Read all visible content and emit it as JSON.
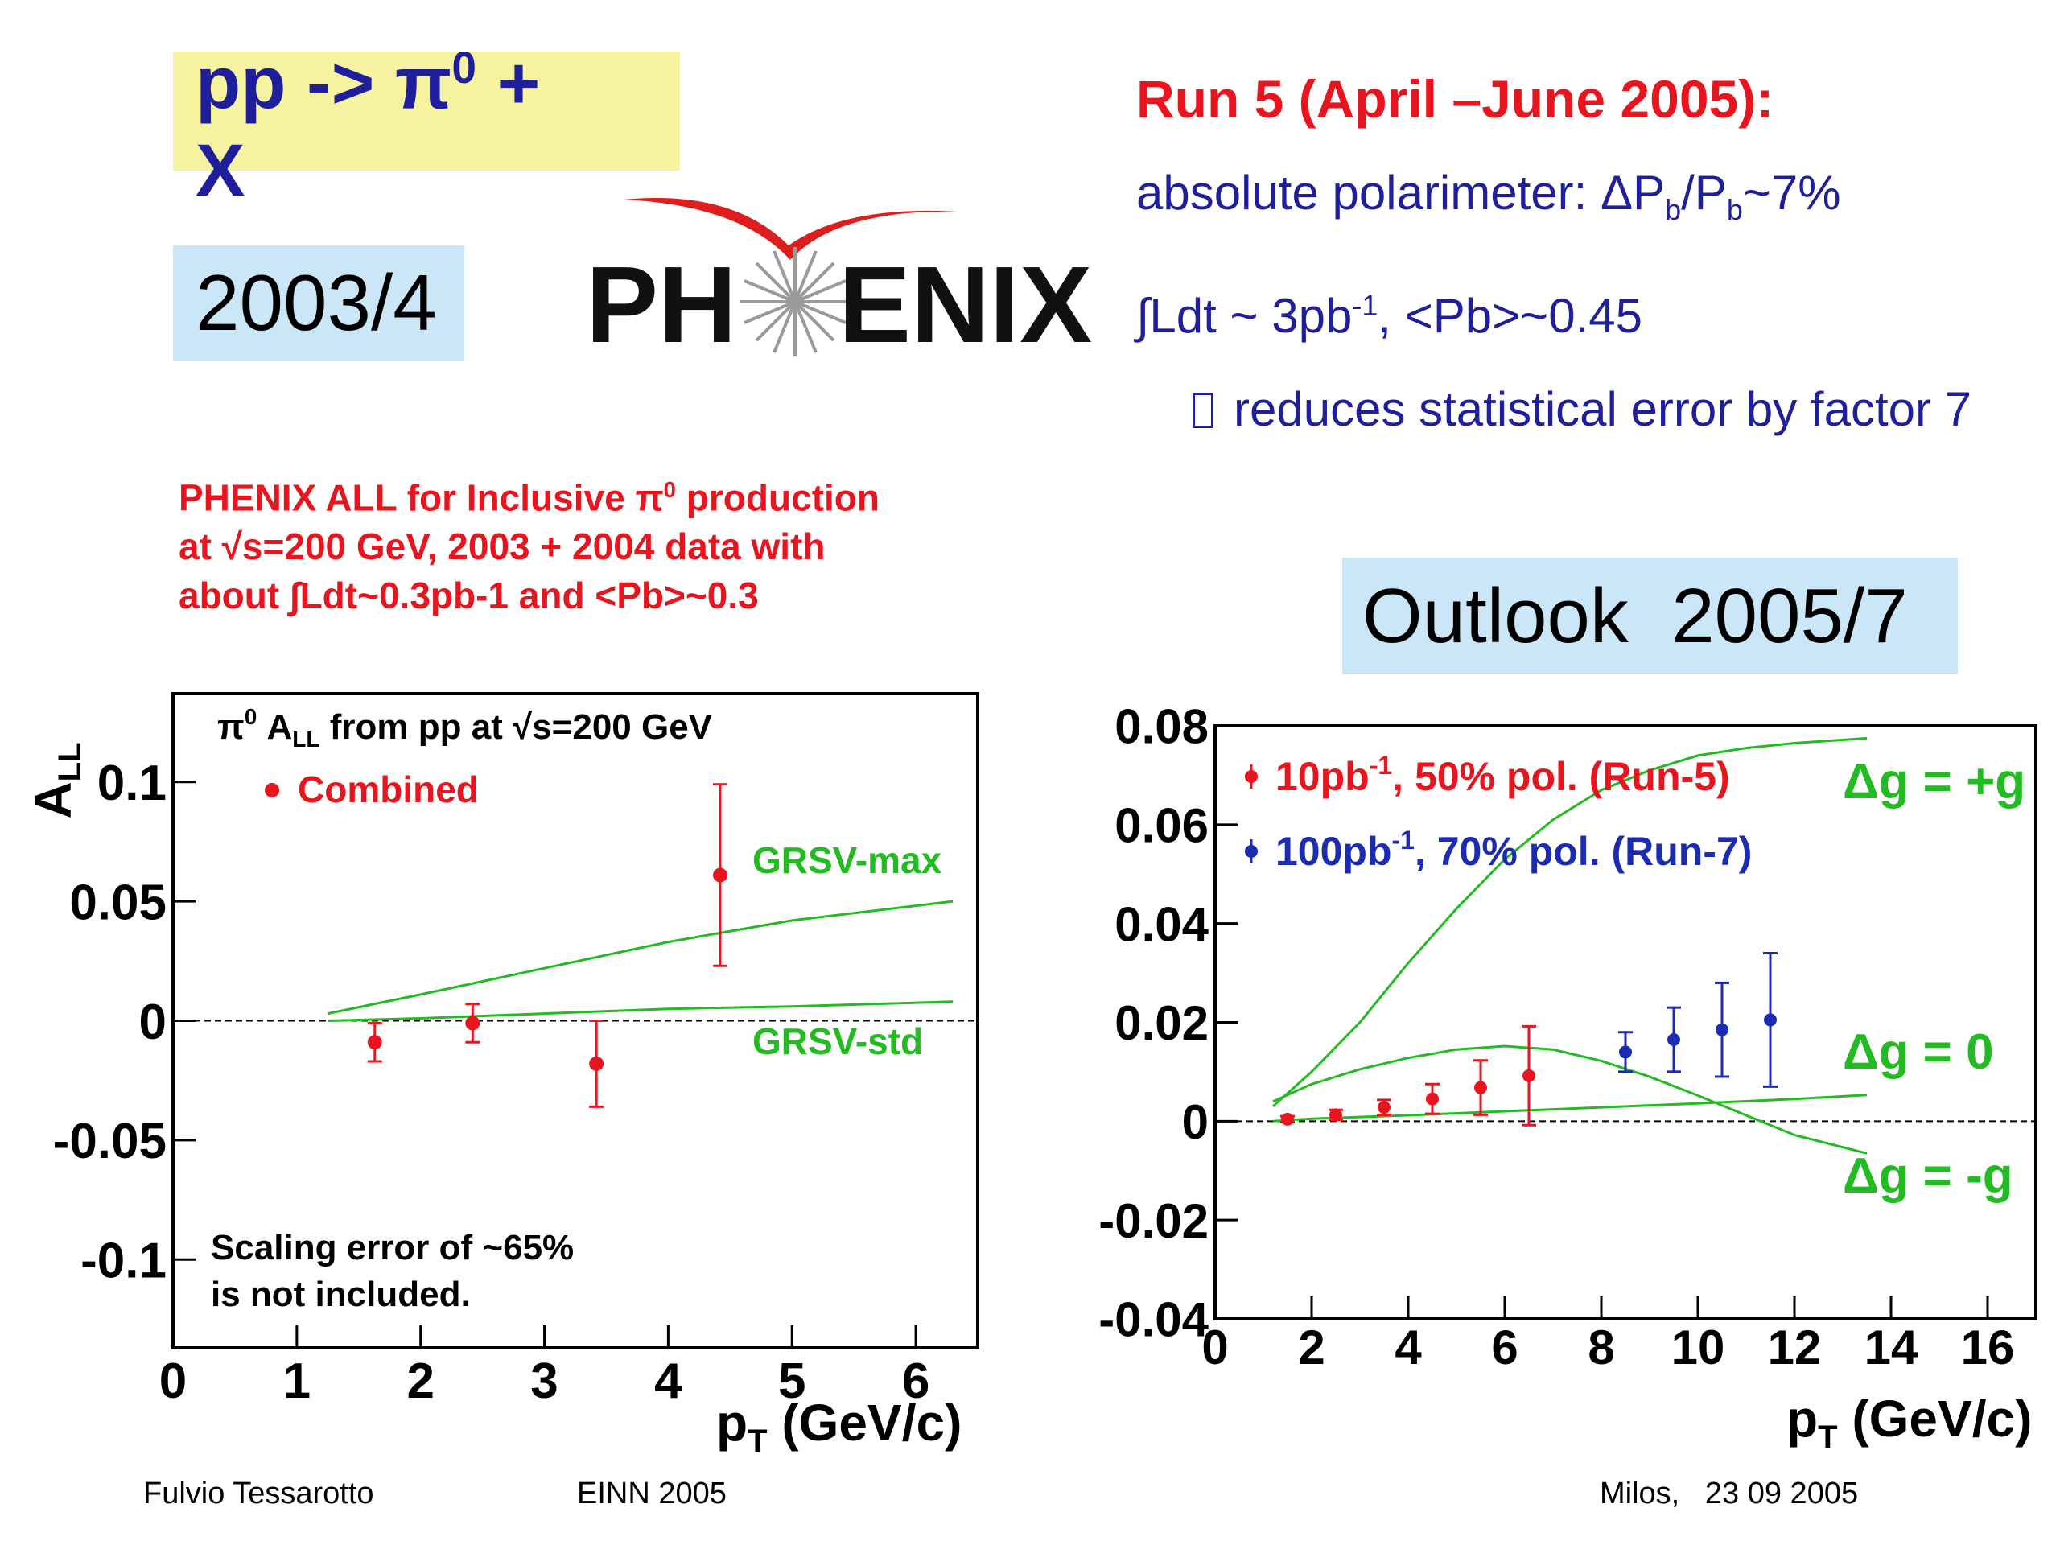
{
  "header": {
    "title_line1": "pp -> ",
    "title_symbol": "π",
    "title_sup": "0",
    "title_plus": " +",
    "title_line2": "X",
    "year_box": "2003/4",
    "logo_left": "PH",
    "logo_right": "ENIX"
  },
  "run5": {
    "heading": "Run 5 (April –June 2005):",
    "line1_prefix": "absolute polarimeter: ΔP",
    "line1_sub1": "b",
    "line1_mid": "/P",
    "line1_sub2": "b",
    "line1_suffix": "~7%",
    "line2_prefix": "∫Ldt ~ 3pb",
    "line2_sup": "-1",
    "line2_suffix": ", <Pb>~0.45",
    "line3": "reduces statistical error by factor 7"
  },
  "description": {
    "line1_prefix": "PHENIX ALL for Inclusive ",
    "line1_symbol": "π",
    "line1_sup": "0",
    "line1_suffix": " production",
    "line2": "at √s=200 GeV, 2003 + 2004 data with",
    "line3": "about ∫Ldt~0.3pb-1 and <Pb>~0.3"
  },
  "outlook": {
    "label": "Outlook  2005/7"
  },
  "footer": {
    "author": "Fulvio Tessarotto",
    "conference": "EINN 2005",
    "place_date": "Milos,   23 09 2005"
  },
  "chart_data": [
    {
      "type": "scatter",
      "title": "π⁰ A_LL from pp at √s=200 GeV",
      "ylabel": "A_LL",
      "xlabel": "p_T (GeV/c)",
      "xlim": [
        0,
        6.5
      ],
      "ylim": [
        -0.137,
        0.137
      ],
      "xticks": [
        "0",
        "1",
        "2",
        "3",
        "4",
        "5",
        "6"
      ],
      "yticks": [
        "0.1",
        "0.05",
        "0",
        "-0.05",
        "-0.1"
      ],
      "series": [
        {
          "name": "Combined",
          "color": "#e8141e",
          "x": [
            1.63,
            2.42,
            3.42,
            4.42
          ],
          "y": [
            -0.009,
            -0.001,
            -0.018,
            0.061
          ],
          "err": [
            0.008,
            0.008,
            0.018,
            0.038
          ]
        }
      ],
      "curves": [
        {
          "name": "GRSV-max",
          "color": "#22bb22",
          "x": [
            1.25,
            2,
            3,
            4,
            5,
            6.3
          ],
          "y": [
            0.003,
            0.011,
            0.022,
            0.033,
            0.042,
            0.05
          ]
        },
        {
          "name": "GRSV-std",
          "color": "#22bb22",
          "x": [
            1.25,
            2,
            3,
            4,
            5,
            6.3
          ],
          "y": [
            0.0,
            0.001,
            0.003,
            0.005,
            0.006,
            0.008
          ]
        }
      ],
      "annotation": "Scaling error of ~65%\nis not included.",
      "legend": "top-left"
    },
    {
      "type": "scatter",
      "xlabel": "p_T (GeV/c)",
      "xlim": [
        0,
        17
      ],
      "ylim": [
        -0.04,
        0.08
      ],
      "xticks": [
        "0",
        "2",
        "4",
        "6",
        "8",
        "10",
        "12",
        "14",
        "16"
      ],
      "yticks": [
        "0.08",
        "0.06",
        "0.04",
        "0.02",
        "0",
        "-0.02",
        "-0.04"
      ],
      "series": [
        {
          "name": "10pb⁻¹, 50% pol. (Run-5)",
          "color": "#e8141e",
          "x": [
            1.5,
            2.5,
            3.5,
            4.5,
            5.5,
            6.5
          ],
          "y": [
            0.0004,
            0.0013,
            0.0028,
            0.0045,
            0.0068,
            0.0092
          ],
          "err": [
            0.0006,
            0.001,
            0.0015,
            0.003,
            0.0055,
            0.01
          ]
        },
        {
          "name": "100pb⁻¹, 70% pol. (Run-7)",
          "color": "#1b2bb3",
          "x": [
            8.5,
            9.5,
            10.5,
            11.5
          ],
          "y": [
            0.014,
            0.0165,
            0.0185,
            0.0205
          ],
          "err": [
            0.004,
            0.0065,
            0.0095,
            0.0135
          ]
        }
      ],
      "curves": [
        {
          "name": "Δg = +g",
          "color": "#22bb22",
          "x": [
            1.2,
            2,
            3,
            4,
            5,
            6,
            7,
            8,
            9,
            10,
            11,
            12,
            13.5
          ],
          "y": [
            0.003,
            0.01,
            0.02,
            0.032,
            0.043,
            0.053,
            0.061,
            0.067,
            0.071,
            0.074,
            0.0755,
            0.0765,
            0.0775
          ]
        },
        {
          "name": "Δg = 0",
          "color": "#22bb22",
          "x": [
            1.2,
            2,
            4,
            6,
            8,
            10,
            12,
            13.5
          ],
          "y": [
            0.0,
            0.0005,
            0.0012,
            0.002,
            0.0028,
            0.0036,
            0.0045,
            0.0053
          ]
        },
        {
          "name": "Δg = -g",
          "color": "#22bb22",
          "x": [
            1.2,
            2,
            3,
            4,
            5,
            6,
            7,
            8,
            9,
            10,
            11,
            12,
            13.5
          ],
          "y": [
            0.004,
            0.0075,
            0.0105,
            0.0128,
            0.0145,
            0.0152,
            0.0145,
            0.0122,
            0.009,
            0.0052,
            0.0012,
            -0.0028,
            -0.0065
          ]
        }
      ],
      "legend": "top-left"
    }
  ]
}
